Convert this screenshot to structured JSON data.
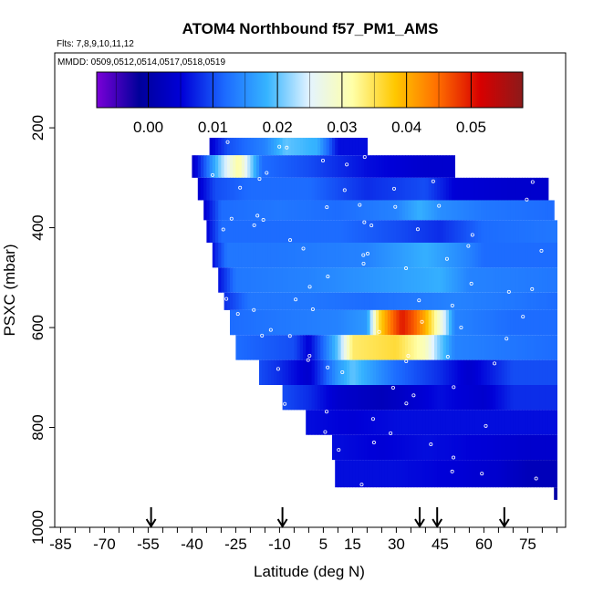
{
  "chart_data": {
    "type": "heatmap",
    "title": "ATOM4 Northbound f57_PM1_AMS",
    "subtitle_flights": "Flts: 7,8,9,10,11,12",
    "subtitle_dates": "MMDD: 0509,0512,0514,0517,0518,0519",
    "xlabel": "Latitude (deg N)",
    "ylabel": "PSXC (mbar)",
    "xlim": [
      -87,
      88
    ],
    "ylim": [
      1000,
      50
    ],
    "x_ticks": [
      -85,
      -70,
      -55,
      -40,
      -25,
      -10,
      5,
      15,
      30,
      45,
      60,
      75
    ],
    "y_ticks": [
      200,
      400,
      600,
      800,
      1000
    ],
    "colorbar": {
      "min": -0.008,
      "max": 0.058,
      "ticks": [
        0.0,
        0.01,
        0.02,
        0.03,
        0.04,
        0.05
      ],
      "tick_labels": [
        "0.00",
        "0.01",
        "0.02",
        "0.03",
        "0.04",
        "0.05"
      ],
      "colors": [
        "#7a00d8",
        "#00009a",
        "#0000d8",
        "#1c6aff",
        "#36b4ff",
        "#e4f4ff",
        "#ffffa8",
        "#ffc800",
        "#ff6e00",
        "#d80000",
        "#8c1a1a"
      ]
    },
    "flight_arrows_lat": [
      -54,
      -9,
      38,
      44,
      67
    ],
    "bands": [
      {
        "p_top": 220,
        "p_bot": 255,
        "lat_min": -34,
        "lat_max": 20,
        "segments": [
          [
            -34,
            0.004
          ],
          [
            -28,
            0.01
          ],
          [
            -15,
            0.014
          ],
          [
            -8,
            0.02
          ],
          [
            3,
            0.018
          ],
          [
            10,
            0.006
          ],
          [
            20,
            0.006
          ]
        ]
      },
      {
        "p_top": 255,
        "p_bot": 300,
        "lat_min": -40,
        "lat_max": 50,
        "segments": [
          [
            -40,
            0.003
          ],
          [
            -36,
            0.01
          ],
          [
            -30,
            0.022
          ],
          [
            -24,
            0.032
          ],
          [
            -16,
            0.012
          ],
          [
            0,
            0.01
          ],
          [
            20,
            0.006
          ],
          [
            40,
            0.004
          ],
          [
            50,
            0.004
          ]
        ]
      },
      {
        "p_top": 300,
        "p_bot": 345,
        "lat_min": -38,
        "lat_max": 82,
        "segments": [
          [
            -38,
            0.004
          ],
          [
            -32,
            0.01
          ],
          [
            -20,
            0.012
          ],
          [
            0,
            0.012
          ],
          [
            20,
            0.008
          ],
          [
            40,
            0.01
          ],
          [
            50,
            0.005
          ],
          [
            70,
            0.004
          ],
          [
            82,
            0.004
          ]
        ]
      },
      {
        "p_top": 345,
        "p_bot": 385,
        "lat_min": -36,
        "lat_max": 84,
        "segments": [
          [
            -36,
            0.004
          ],
          [
            -30,
            0.012
          ],
          [
            -10,
            0.013
          ],
          [
            10,
            0.012
          ],
          [
            30,
            0.014
          ],
          [
            38,
            0.018
          ],
          [
            45,
            0.015
          ],
          [
            60,
            0.013
          ],
          [
            84,
            0.012
          ]
        ]
      },
      {
        "p_top": 385,
        "p_bot": 430,
        "lat_min": -35,
        "lat_max": 85,
        "segments": [
          [
            -35,
            0.005
          ],
          [
            -30,
            0.012
          ],
          [
            -10,
            0.012
          ],
          [
            10,
            0.012
          ],
          [
            30,
            0.01
          ],
          [
            45,
            0.008
          ],
          [
            60,
            0.012
          ],
          [
            85,
            0.013
          ]
        ]
      },
      {
        "p_top": 430,
        "p_bot": 480,
        "lat_min": -33,
        "lat_max": 85,
        "segments": [
          [
            -33,
            0.006
          ],
          [
            -28,
            0.013
          ],
          [
            -10,
            0.013
          ],
          [
            20,
            0.014
          ],
          [
            40,
            0.018
          ],
          [
            55,
            0.014
          ],
          [
            60,
            0.012
          ],
          [
            85,
            0.012
          ]
        ]
      },
      {
        "p_top": 480,
        "p_bot": 530,
        "lat_min": -31,
        "lat_max": 85,
        "segments": [
          [
            -31,
            0.006
          ],
          [
            -25,
            0.013
          ],
          [
            0,
            0.014
          ],
          [
            25,
            0.016
          ],
          [
            45,
            0.018
          ],
          [
            55,
            0.014
          ],
          [
            85,
            0.013
          ]
        ]
      },
      {
        "p_top": 530,
        "p_bot": 565,
        "lat_min": -29,
        "lat_max": 85,
        "segments": [
          [
            -29,
            0.008
          ],
          [
            -20,
            0.013
          ],
          [
            0,
            0.013
          ],
          [
            20,
            0.012
          ],
          [
            35,
            0.013
          ],
          [
            50,
            0.014
          ],
          [
            70,
            0.013
          ],
          [
            85,
            0.012
          ]
        ]
      },
      {
        "p_top": 565,
        "p_bot": 615,
        "lat_min": -27,
        "lat_max": 85,
        "segments": [
          [
            -27,
            0.012
          ],
          [
            -10,
            0.013
          ],
          [
            10,
            0.014
          ],
          [
            20,
            0.016
          ],
          [
            24,
            0.036
          ],
          [
            28,
            0.044
          ],
          [
            32,
            0.05
          ],
          [
            36,
            0.046
          ],
          [
            40,
            0.04
          ],
          [
            46,
            0.026
          ],
          [
            50,
            0.014
          ],
          [
            70,
            0.012
          ],
          [
            85,
            0.012
          ]
        ]
      },
      {
        "p_top": 615,
        "p_bot": 665,
        "lat_min": -25,
        "lat_max": 85,
        "segments": [
          [
            -25,
            0.012
          ],
          [
            -5,
            0.01
          ],
          [
            0,
            0.005
          ],
          [
            5,
            0.012
          ],
          [
            10,
            0.02
          ],
          [
            15,
            0.034
          ],
          [
            30,
            0.036
          ],
          [
            40,
            0.03
          ],
          [
            44,
            0.022
          ],
          [
            50,
            0.014
          ],
          [
            85,
            0.012
          ]
        ]
      },
      {
        "p_top": 665,
        "p_bot": 715,
        "lat_min": -17,
        "lat_max": 85,
        "segments": [
          [
            -17,
            0.01
          ],
          [
            -10,
            0.008
          ],
          [
            0,
            0.004
          ],
          [
            10,
            0.016
          ],
          [
            15,
            0.02
          ],
          [
            30,
            0.012
          ],
          [
            45,
            0.008
          ],
          [
            55,
            0.004
          ],
          [
            70,
            0.01
          ],
          [
            85,
            0.01
          ]
        ]
      },
      {
        "p_top": 715,
        "p_bot": 765,
        "lat_min": -9,
        "lat_max": 85,
        "segments": [
          [
            -9,
            0.01
          ],
          [
            0,
            0.008
          ],
          [
            10,
            0.004
          ],
          [
            25,
            0.002
          ],
          [
            45,
            0.006
          ],
          [
            60,
            0.004
          ],
          [
            70,
            0.008
          ],
          [
            85,
            0.008
          ]
        ]
      },
      {
        "p_top": 765,
        "p_bot": 815,
        "lat_min": -1,
        "lat_max": 85,
        "segments": [
          [
            -1,
            0.006
          ],
          [
            15,
            0.005
          ],
          [
            30,
            0.006
          ],
          [
            50,
            0.006
          ],
          [
            70,
            0.006
          ],
          [
            85,
            0.006
          ]
        ]
      },
      {
        "p_top": 815,
        "p_bot": 865,
        "lat_min": 8,
        "lat_max": 85,
        "segments": [
          [
            8,
            0.006
          ],
          [
            25,
            0.005
          ],
          [
            40,
            0.006
          ],
          [
            60,
            0.005
          ],
          [
            75,
            0.004
          ],
          [
            85,
            0.004
          ]
        ]
      },
      {
        "p_top": 865,
        "p_bot": 920,
        "lat_min": 9,
        "lat_max": 85,
        "segments": [
          [
            9,
            0.006
          ],
          [
            30,
            0.006
          ],
          [
            50,
            0.005
          ],
          [
            65,
            0.004
          ],
          [
            75,
            0.002
          ],
          [
            85,
            0.002
          ]
        ]
      },
      {
        "p_top": 920,
        "p_bot": 945,
        "lat_min": 84,
        "lat_max": 85,
        "segments": [
          [
            84,
            0.0
          ],
          [
            85,
            0.0
          ]
        ]
      }
    ]
  }
}
